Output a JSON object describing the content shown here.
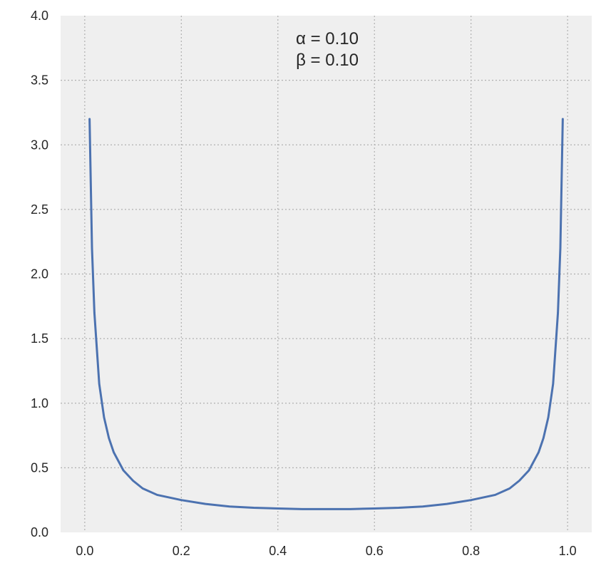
{
  "chart_data": {
    "type": "line",
    "title": "",
    "xlabel": "",
    "ylabel": "",
    "xlim": [
      -0.05,
      1.05
    ],
    "ylim": [
      0,
      4.0
    ],
    "xticks": [
      0.0,
      0.2,
      0.4,
      0.6,
      0.8,
      1.0
    ],
    "xtick_labels": [
      "0.0",
      "0.2",
      "0.4",
      "0.6",
      "0.8",
      "1.0"
    ],
    "yticks": [
      0.0,
      0.5,
      1.0,
      1.5,
      2.0,
      2.5,
      3.0,
      3.5,
      4.0
    ],
    "ytick_labels": [
      "0.0",
      "0.5",
      "1.0",
      "1.5",
      "2.0",
      "2.5",
      "3.0",
      "3.5",
      "4.0"
    ],
    "grid": true,
    "annotations": [
      "α = 0.10",
      "β = 0.10"
    ],
    "colors": {
      "line": "#4c72b0",
      "background": "#efefef",
      "grid": "#b0b0b0"
    },
    "series": [
      {
        "x": [
          0.01,
          0.015,
          0.02,
          0.03,
          0.04,
          0.05,
          0.06,
          0.08,
          0.1,
          0.12,
          0.15,
          0.2,
          0.25,
          0.3,
          0.35,
          0.4,
          0.45,
          0.5,
          0.55,
          0.6,
          0.65,
          0.7,
          0.75,
          0.8,
          0.85,
          0.88,
          0.9,
          0.92,
          0.94,
          0.95,
          0.96,
          0.97,
          0.98,
          0.985,
          0.99
        ],
        "y": [
          3.2,
          2.2,
          1.7,
          1.15,
          0.89,
          0.73,
          0.62,
          0.48,
          0.4,
          0.34,
          0.29,
          0.25,
          0.22,
          0.2,
          0.19,
          0.185,
          0.18,
          0.18,
          0.18,
          0.185,
          0.19,
          0.2,
          0.22,
          0.25,
          0.29,
          0.34,
          0.4,
          0.48,
          0.62,
          0.73,
          0.89,
          1.15,
          1.7,
          2.2,
          3.2
        ]
      }
    ]
  }
}
